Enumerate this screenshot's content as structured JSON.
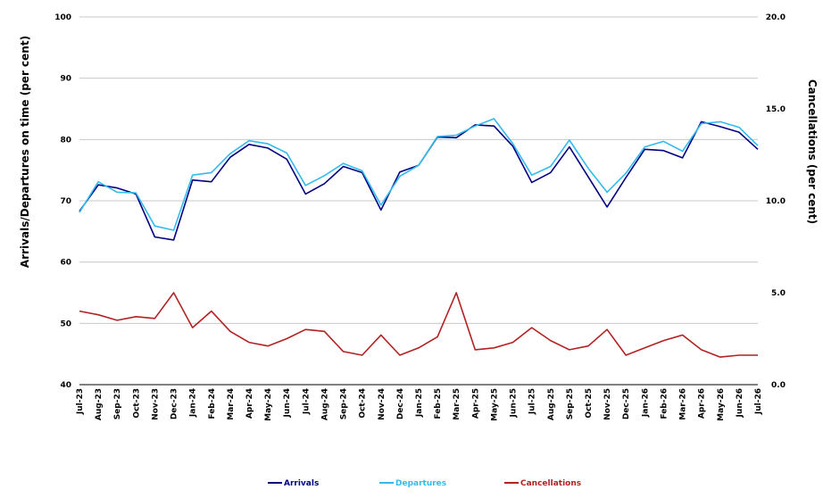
{
  "chart_data": {
    "type": "line",
    "title": "",
    "ylabel_left": "Arrivals/Departures on time (per cent)",
    "ylabel_right": "Cancellations (per cent)",
    "ylim_left": [
      40,
      100
    ],
    "ylim_right": [
      0,
      20
    ],
    "yticks_left": [
      "40",
      "50",
      "60",
      "70",
      "80",
      "90",
      "100"
    ],
    "yticks_right": [
      "0.0",
      "5.0",
      "10.0",
      "15.0",
      "20.0"
    ],
    "grid": true,
    "legend_position": "bottom",
    "categories": [
      "Jul-23",
      "Aug-23",
      "Sep-23",
      "Oct-23",
      "Nov-23",
      "Dec-23",
      "Jan-24",
      "Feb-24",
      "Mar-24",
      "Apr-24",
      "May-24",
      "Jun-24",
      "Jul-24",
      "Aug-24",
      "Sep-24",
      "Oct-24",
      "Nov-24",
      "Dec-24",
      "Jan-25",
      "Feb-25",
      "Mar-25",
      "Apr-25",
      "May-25",
      "Jun-25",
      "Jul-25",
      "Aug-25",
      "Sep-25",
      "Oct-25",
      "Nov-25",
      "Dec-25",
      "Jan-26",
      "Feb-26",
      "Mar-26",
      "Apr-26",
      "May-26",
      "Jun-26",
      "Jul-26"
    ],
    "series": [
      {
        "name": "Arrivals",
        "axis": "left",
        "color": "#000080",
        "values": [
          68.3,
          72.6,
          72.1,
          71.1,
          64.1,
          63.6,
          73.4,
          73.1,
          77.1,
          79.2,
          78.6,
          76.8,
          71.1,
          72.8,
          75.6,
          74.6,
          68.5,
          74.7,
          75.8,
          80.4,
          80.3,
          82.4,
          82.2,
          78.9,
          73.0,
          74.6,
          78.8,
          73.9,
          69.0,
          73.8,
          78.4,
          78.2,
          77.0,
          82.9,
          82.1,
          81.2,
          78.4
        ]
      },
      {
        "name": "Departures",
        "axis": "left",
        "color": "#33bbee",
        "values": [
          68.1,
          73.1,
          71.4,
          71.3,
          65.9,
          65.2,
          74.2,
          74.6,
          77.7,
          79.8,
          79.3,
          77.8,
          72.5,
          74.1,
          76.1,
          74.9,
          69.3,
          74.0,
          75.8,
          80.5,
          80.7,
          82.2,
          83.4,
          79.3,
          74.2,
          75.6,
          79.9,
          75.3,
          71.4,
          74.5,
          78.8,
          79.7,
          78.1,
          82.6,
          82.9,
          82.0,
          79.0
        ]
      },
      {
        "name": "Cancellations",
        "axis": "right",
        "color": "#b22222",
        "values": [
          4.0,
          3.8,
          3.5,
          3.7,
          3.6,
          5.0,
          3.1,
          4.0,
          2.9,
          2.3,
          2.1,
          2.5,
          3.0,
          2.9,
          1.8,
          1.6,
          2.7,
          1.6,
          2.0,
          2.6,
          5.0,
          1.9,
          2.0,
          2.3,
          3.1,
          2.4,
          1.9,
          2.1,
          3.0,
          1.6,
          2.0,
          2.4,
          2.7,
          1.9,
          1.5,
          1.6,
          1.6
        ]
      }
    ]
  }
}
